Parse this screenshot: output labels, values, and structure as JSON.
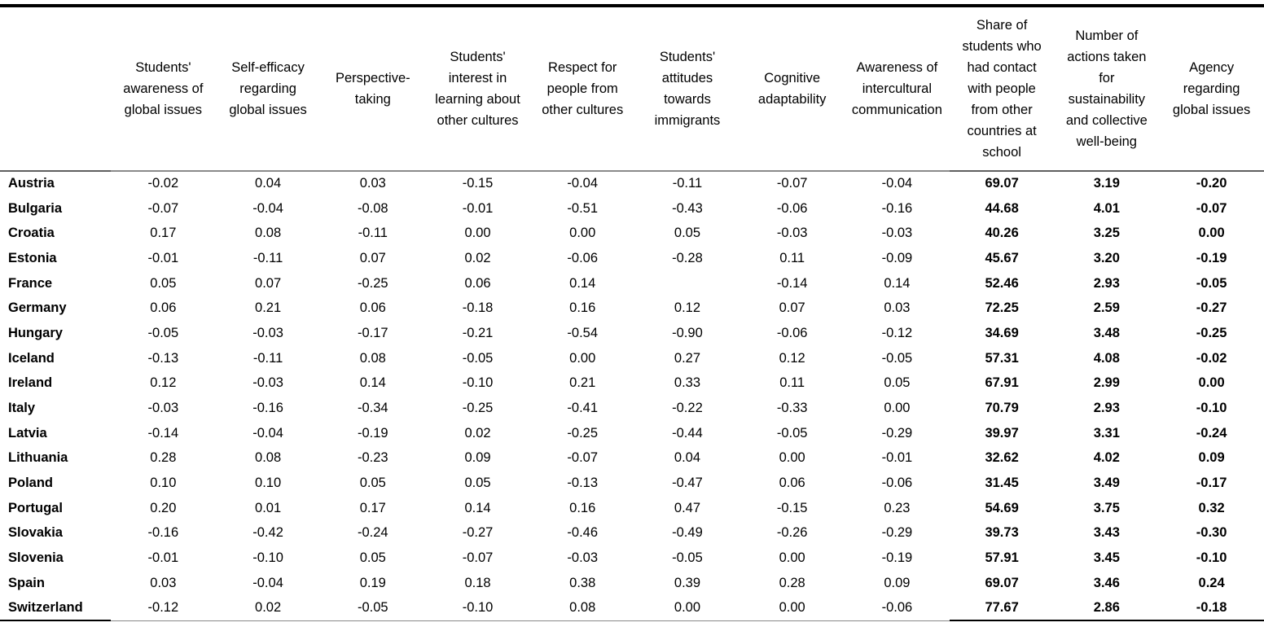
{
  "chart_data": {
    "type": "table",
    "title": "",
    "columns": [
      "",
      "Students' awareness of global issues",
      "Self-efficacy regarding global issues",
      "Perspective-taking",
      "Students' interest in learning about other cultures",
      "Respect for people from other cultures",
      "Students' attitudes towards immigrants",
      "Cognitive adaptability",
      "Awareness of intercultural communication",
      "Share of students who had contact with people from other countries at school",
      "Number of actions taken for sustainability and collective well-being",
      "Agency regarding global issues"
    ],
    "rows": [
      [
        "Austria",
        "-0.02",
        "0.04",
        "0.03",
        "-0.15",
        "-0.04",
        "-0.11",
        "-0.07",
        "-0.04",
        "69.07",
        "3.19",
        "-0.20"
      ],
      [
        "Bulgaria",
        "-0.07",
        "-0.04",
        "-0.08",
        "-0.01",
        "-0.51",
        "-0.43",
        "-0.06",
        "-0.16",
        "44.68",
        "4.01",
        "-0.07"
      ],
      [
        "Croatia",
        "0.17",
        "0.08",
        "-0.11",
        "0.00",
        "0.00",
        "0.05",
        "-0.03",
        "-0.03",
        "40.26",
        "3.25",
        "0.00"
      ],
      [
        "Estonia",
        "-0.01",
        "-0.11",
        "0.07",
        "0.02",
        "-0.06",
        "-0.28",
        "0.11",
        "-0.09",
        "45.67",
        "3.20",
        "-0.19"
      ],
      [
        "France",
        "0.05",
        "0.07",
        "-0.25",
        "0.06",
        "0.14",
        "",
        "-0.14",
        "0.14",
        "52.46",
        "2.93",
        "-0.05"
      ],
      [
        "Germany",
        "0.06",
        "0.21",
        "0.06",
        "-0.18",
        "0.16",
        "0.12",
        "0.07",
        "0.03",
        "72.25",
        "2.59",
        "-0.27"
      ],
      [
        "Hungary",
        "-0.05",
        "-0.03",
        "-0.17",
        "-0.21",
        "-0.54",
        "-0.90",
        "-0.06",
        "-0.12",
        "34.69",
        "3.48",
        "-0.25"
      ],
      [
        "Iceland",
        "-0.13",
        "-0.11",
        "0.08",
        "-0.05",
        "0.00",
        "0.27",
        "0.12",
        "-0.05",
        "57.31",
        "4.08",
        "-0.02"
      ],
      [
        "Ireland",
        "0.12",
        "-0.03",
        "0.14",
        "-0.10",
        "0.21",
        "0.33",
        "0.11",
        "0.05",
        "67.91",
        "2.99",
        "0.00"
      ],
      [
        "Italy",
        "-0.03",
        "-0.16",
        "-0.34",
        "-0.25",
        "-0.41",
        "-0.22",
        "-0.33",
        "0.00",
        "70.79",
        "2.93",
        "-0.10"
      ],
      [
        "Latvia",
        "-0.14",
        "-0.04",
        "-0.19",
        "0.02",
        "-0.25",
        "-0.44",
        "-0.05",
        "-0.29",
        "39.97",
        "3.31",
        "-0.24"
      ],
      [
        "Lithuania",
        "0.28",
        "0.08",
        "-0.23",
        "0.09",
        "-0.07",
        "0.04",
        "0.00",
        "-0.01",
        "32.62",
        "4.02",
        "0.09"
      ],
      [
        "Poland",
        "0.10",
        "0.10",
        "0.05",
        "0.05",
        "-0.13",
        "-0.47",
        "0.06",
        "-0.06",
        "31.45",
        "3.49",
        "-0.17"
      ],
      [
        "Portugal",
        "0.20",
        "0.01",
        "0.17",
        "0.14",
        "0.16",
        "0.47",
        "-0.15",
        "0.23",
        "54.69",
        "3.75",
        "0.32"
      ],
      [
        "Slovakia",
        "-0.16",
        "-0.42",
        "-0.24",
        "-0.27",
        "-0.46",
        "-0.49",
        "-0.26",
        "-0.29",
        "39.73",
        "3.43",
        "-0.30"
      ],
      [
        "Slovenia",
        "-0.01",
        "-0.10",
        "0.05",
        "-0.07",
        "-0.03",
        "-0.05",
        "0.00",
        "-0.19",
        "57.91",
        "3.45",
        "-0.10"
      ],
      [
        "Spain",
        "0.03",
        "-0.04",
        "0.19",
        "0.18",
        "0.38",
        "0.39",
        "0.28",
        "0.09",
        "69.07",
        "3.46",
        "0.24"
      ],
      [
        "Switzerland",
        "-0.12",
        "0.02",
        "-0.05",
        "-0.10",
        "0.08",
        "0.00",
        "0.00",
        "-0.06",
        "77.67",
        "2.86",
        "-0.18"
      ]
    ],
    "layout_hints": {
      "bold_columns": [
        "Share of students who had contact with people from other countries at school",
        "Number of actions taken for sustainability and collective well-being",
        "Agency regarding global issues"
      ],
      "text_color": "#000000",
      "top_rule_color": "#000000",
      "mid_rule_color": "#8a8a8a"
    }
  }
}
